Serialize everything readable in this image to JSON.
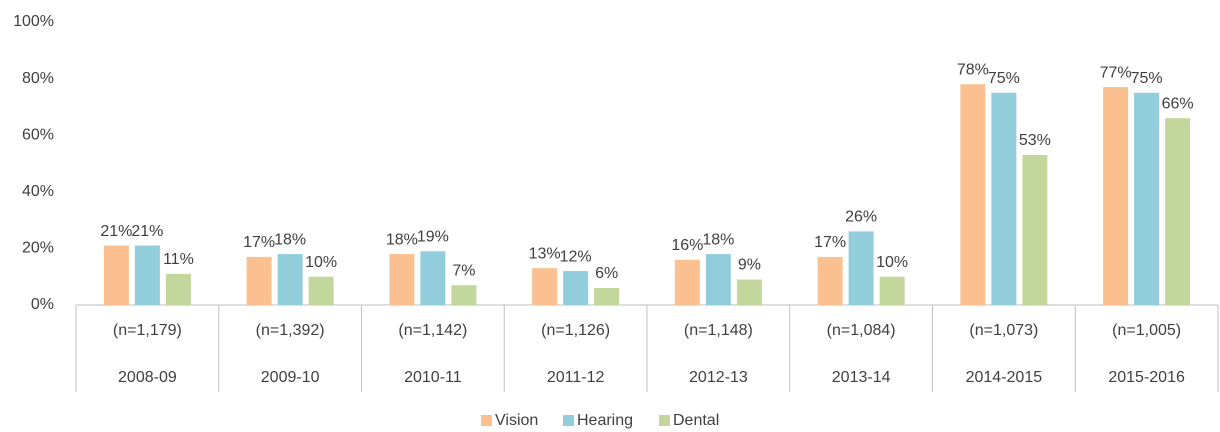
{
  "chart_data": {
    "type": "bar",
    "categories": [
      "2008-09",
      "2009-10",
      "2010-11",
      "2011-12",
      "2012-13",
      "2013-14",
      "2014-2015",
      "2015-2016"
    ],
    "sample_sizes": [
      "(n=1,179)",
      "(n=1,392)",
      "(n=1,142)",
      "(n=1,126)",
      "(n=1,148)",
      "(n=1,084)",
      "(n=1,073)",
      "(n=1,005)"
    ],
    "series": [
      {
        "name": "Vision",
        "color": "#fac090",
        "values": [
          21,
          17,
          18,
          13,
          16,
          17,
          78,
          77
        ],
        "value_labels": [
          "21%",
          "17%",
          "18%",
          "13%",
          "16%",
          "17%",
          "78%",
          "77%"
        ]
      },
      {
        "name": "Hearing",
        "color": "#92cddc",
        "values": [
          21,
          18,
          19,
          12,
          18,
          26,
          75,
          75
        ],
        "value_labels": [
          "21%",
          "18%",
          "19%",
          "12%",
          "18%",
          "26%",
          "75%",
          "75%"
        ]
      },
      {
        "name": "Dental",
        "color": "#c3d69b",
        "values": [
          11,
          10,
          7,
          6,
          9,
          10,
          53,
          66
        ],
        "value_labels": [
          "11%",
          "10%",
          "7%",
          "6%",
          "9%",
          "10%",
          "53%",
          "66%"
        ]
      }
    ],
    "ylim": [
      0,
      100
    ],
    "yticks": [
      {
        "value": 0,
        "label": "0%"
      },
      {
        "value": 20,
        "label": "20%"
      },
      {
        "value": 40,
        "label": "40%"
      },
      {
        "value": 60,
        "label": "60%"
      },
      {
        "value": 80,
        "label": "80%"
      },
      {
        "value": 100,
        "label": "100%"
      }
    ],
    "grid": false,
    "legend": "bottom"
  }
}
